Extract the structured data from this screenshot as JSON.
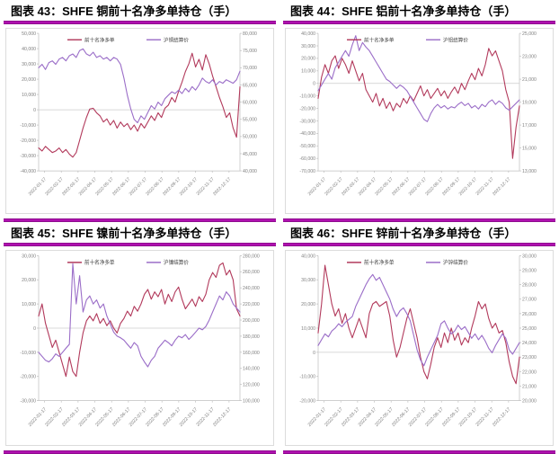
{
  "colors": {
    "net_long_line": "#b23a5c",
    "price_line": "#9b6ec8",
    "title_rule": "#9b0d9b",
    "axis_text": "#808080",
    "axis_line": "#bfbfbf",
    "zero_line": "#cccccc",
    "box_border": "#dcdcdc",
    "legend_text": "#404040"
  },
  "chart_data": [
    {
      "type": "line",
      "title": "图表 43：SHFE 铜前十名净多单持仓（手）",
      "legend": [
        "前十名净多单",
        "沪铜结算价"
      ],
      "legend_position": "top-center",
      "grid": false,
      "x_labels": [
        "2022-01-17",
        "2022-02-17",
        "2022-03-17",
        "2022-04-17",
        "2022-05-17",
        "2022-06-17",
        "2022-07-17",
        "2022-08-17",
        "2022-09-17",
        "2022-10-17",
        "2022-11-17",
        "2022-12-17"
      ],
      "left_axis": {
        "min": -40000,
        "max": 50000,
        "step": 10000
      },
      "right_axis": {
        "min": 40000,
        "max": 80000,
        "step": 5000
      },
      "series": [
        {
          "name": "前十名净多单",
          "axis": "left",
          "color_key": "net_long_line",
          "values": [
            -25000,
            -27000,
            -24000,
            -26000,
            -28000,
            -27000,
            -25000,
            -28000,
            -26000,
            -29000,
            -31000,
            -28000,
            -20000,
            -12000,
            -5000,
            500,
            1000,
            -2000,
            -4000,
            -8000,
            -6000,
            -10000,
            -7000,
            -12000,
            -8000,
            -11000,
            -9000,
            -13000,
            -10000,
            -14000,
            -9000,
            -12000,
            -8000,
            -4000,
            -7000,
            -2000,
            -5000,
            1000,
            3000,
            8000,
            5000,
            12000,
            18000,
            25000,
            30000,
            37000,
            28000,
            33000,
            26000,
            36000,
            30000,
            22000,
            15000,
            8000,
            2000,
            -5000,
            -2000,
            -12000,
            -18000,
            15000
          ]
        },
        {
          "name": "沪铜结算价",
          "axis": "right",
          "color_key": "price_line",
          "values": [
            70000,
            71000,
            69500,
            71500,
            72000,
            71000,
            72500,
            73000,
            72000,
            73500,
            74000,
            73000,
            75000,
            75500,
            74000,
            73500,
            74500,
            73000,
            73500,
            72500,
            73000,
            72000,
            73000,
            72500,
            71000,
            67000,
            62000,
            58000,
            55000,
            54000,
            56000,
            55000,
            57000,
            59000,
            58000,
            60000,
            59000,
            61000,
            62000,
            63000,
            62500,
            63500,
            62500,
            64000,
            63000,
            64500,
            63500,
            65000,
            67000,
            66000,
            65500,
            66500,
            65000,
            66000,
            65500,
            66500,
            66000,
            65500,
            66500,
            69000
          ]
        }
      ]
    },
    {
      "type": "line",
      "title": "图表 44：SHFE 铝前十名净多单持仓（手）",
      "legend": [
        "前十名净多单",
        "沪铝结算价"
      ],
      "legend_position": "top-center",
      "grid": false,
      "x_labels": [
        "2022-01-17",
        "2022-02-17",
        "2022-03-17",
        "2022-04-17",
        "2022-05-17",
        "2022-06-17",
        "2022-07-17",
        "2022-08-17",
        "2022-09-17",
        "2022-10-17",
        "2022-11-17",
        "2022-12-17"
      ],
      "left_axis": {
        "min": -70000,
        "max": 40000,
        "step": 10000
      },
      "right_axis": {
        "min": 13000,
        "max": 25000,
        "step": 2000
      },
      "series": [
        {
          "name": "前十名净多单",
          "axis": "left",
          "color_key": "net_long_line",
          "values": [
            -12000,
            5000,
            15000,
            8000,
            18000,
            22000,
            12000,
            20000,
            15000,
            8000,
            18000,
            10000,
            2000,
            8000,
            -5000,
            -10000,
            -15000,
            -8000,
            -18000,
            -12000,
            -20000,
            -15000,
            -22000,
            -16000,
            -19000,
            -12000,
            -16000,
            -10000,
            -14000,
            -8000,
            -2000,
            -10000,
            -5000,
            -12000,
            -8000,
            -4000,
            -10000,
            -6000,
            -12000,
            -7000,
            -3000,
            -8000,
            0,
            -5000,
            2000,
            8000,
            3000,
            12000,
            6000,
            15000,
            28000,
            22000,
            26000,
            18000,
            10000,
            -5000,
            -15000,
            -60000,
            -35000,
            -18000
          ]
        },
        {
          "name": "沪铝结算价",
          "axis": "right",
          "color_key": "price_line",
          "values": [
            20000,
            20500,
            21000,
            21500,
            21000,
            22000,
            22500,
            23000,
            23500,
            23000,
            24000,
            24800,
            23500,
            24200,
            23800,
            23500,
            23000,
            22500,
            22000,
            21500,
            21000,
            20800,
            20500,
            20200,
            20500,
            20300,
            20000,
            19500,
            19000,
            18500,
            18000,
            17500,
            17300,
            18000,
            18500,
            18800,
            18500,
            18700,
            18400,
            18600,
            18500,
            18800,
            19000,
            18700,
            18900,
            18500,
            18700,
            18400,
            18800,
            18600,
            19000,
            19200,
            18800,
            19100,
            18900,
            18500,
            18300,
            18600,
            18900,
            19200
          ]
        }
      ]
    },
    {
      "type": "line",
      "title": "图表 45：SHFE 镍前十名净多单持仓（手）",
      "legend": [
        "前十名净多单",
        "沪镍结算价"
      ],
      "legend_position": "top-center",
      "grid": false,
      "x_labels": [
        "2022-01-17",
        "2022-02-17",
        "2022-03-17",
        "2022-04-17",
        "2022-05-17",
        "2022-06-17",
        "2022-07-17",
        "2022-08-17",
        "2022-09-17",
        "2022-10-17",
        "2022-11-17",
        "2022-12-17"
      ],
      "left_axis": {
        "min": -30000,
        "max": 30000,
        "step": 10000
      },
      "right_axis": {
        "min": 100000,
        "max": 280000,
        "step": 20000
      },
      "series": [
        {
          "name": "前十名净多单",
          "axis": "left",
          "color_key": "net_long_line",
          "values": [
            5000,
            10000,
            2000,
            -3000,
            -8000,
            -5000,
            -10000,
            -15000,
            -20000,
            -12000,
            -18000,
            -20000,
            -10000,
            -2000,
            3000,
            5000,
            3000,
            6000,
            2000,
            4000,
            1000,
            3000,
            0,
            -2000,
            2000,
            4000,
            7000,
            5000,
            9000,
            7000,
            10000,
            14000,
            16000,
            12000,
            15000,
            13000,
            16000,
            10000,
            14000,
            11000,
            15000,
            17000,
            12000,
            8000,
            10000,
            12000,
            9000,
            13000,
            11000,
            14000,
            20000,
            23000,
            21000,
            26000,
            27000,
            22000,
            24000,
            20000,
            8000,
            5000
          ]
        },
        {
          "name": "沪镍结算价",
          "axis": "right",
          "color_key": "price_line",
          "values": [
            160000,
            155000,
            150000,
            148000,
            152000,
            158000,
            155000,
            160000,
            165000,
            170000,
            270000,
            220000,
            255000,
            210000,
            225000,
            230000,
            220000,
            225000,
            215000,
            220000,
            205000,
            195000,
            185000,
            180000,
            178000,
            175000,
            170000,
            165000,
            172000,
            168000,
            155000,
            148000,
            142000,
            150000,
            155000,
            165000,
            170000,
            175000,
            172000,
            168000,
            175000,
            180000,
            178000,
            182000,
            176000,
            180000,
            185000,
            190000,
            188000,
            192000,
            200000,
            210000,
            220000,
            230000,
            225000,
            235000,
            230000,
            220000,
            215000,
            210000
          ]
        }
      ]
    },
    {
      "type": "line",
      "title": "图表 46：SHFE 锌前十名净多单持仓（手）",
      "legend": [
        "前十名净多单",
        "沪锌结算价"
      ],
      "legend_position": "top-center",
      "grid": false,
      "x_labels": [
        "2022-01-17",
        "2022-02-17",
        "2022-03-17",
        "2022-04-17",
        "2022-05-17",
        "2022-06-17",
        "2022-07-17",
        "2022-08-17",
        "2022-09-17",
        "2022-10-17",
        "2022-11-17",
        "2022-12-17"
      ],
      "left_axis": {
        "min": -20000,
        "max": 40000,
        "step": 10000
      },
      "right_axis": {
        "min": 20000,
        "max": 30000,
        "step": 1000
      },
      "series": [
        {
          "name": "前十名净多单",
          "axis": "left",
          "color_key": "net_long_line",
          "values": [
            8000,
            20000,
            36000,
            28000,
            20000,
            15000,
            18000,
            12000,
            16000,
            10000,
            6000,
            10000,
            14000,
            10000,
            6000,
            16000,
            20000,
            21000,
            19000,
            20000,
            21000,
            15000,
            5000,
            -2000,
            2000,
            8000,
            14000,
            18000,
            12000,
            6000,
            -2000,
            -8000,
            -11000,
            -5000,
            2000,
            6000,
            2000,
            8000,
            4000,
            10000,
            5000,
            8000,
            3000,
            6000,
            4000,
            10000,
            15000,
            21000,
            18000,
            20000,
            14000,
            10000,
            12000,
            8000,
            9000,
            4000,
            -4000,
            -10000,
            -13000,
            -2000
          ]
        },
        {
          "name": "沪锌结算价",
          "axis": "right",
          "color_key": "price_line",
          "values": [
            23800,
            24200,
            24600,
            24400,
            24800,
            25000,
            25300,
            25100,
            25400,
            25600,
            25800,
            26500,
            27000,
            27500,
            28000,
            28400,
            28700,
            28300,
            28500,
            28000,
            27500,
            27000,
            26300,
            25800,
            26200,
            26400,
            26000,
            25500,
            24500,
            23500,
            22800,
            22400,
            23000,
            23500,
            24000,
            24500,
            25300,
            25500,
            25000,
            24600,
            24800,
            25200,
            24900,
            25100,
            24700,
            24300,
            24600,
            24200,
            24500,
            24100,
            23600,
            23300,
            23800,
            24200,
            24600,
            24300,
            23500,
            23200,
            23600,
            24000
          ]
        }
      ]
    }
  ]
}
